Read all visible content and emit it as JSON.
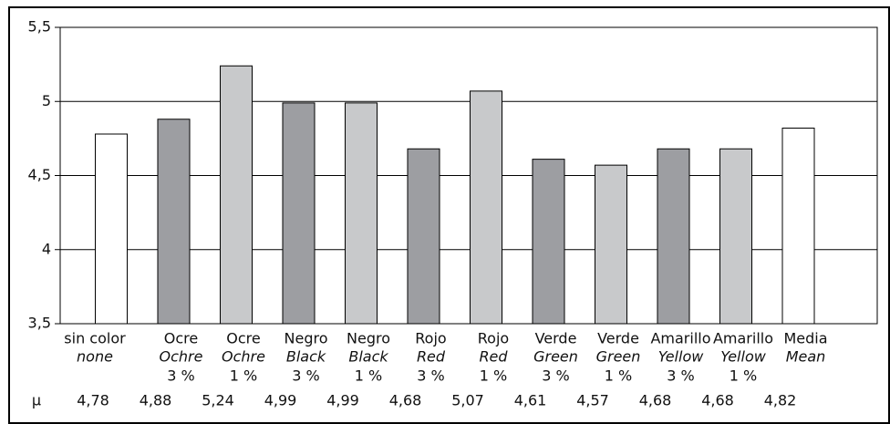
{
  "chart_data": {
    "type": "bar",
    "categories": [
      "sin color",
      "Ocre",
      "Ocre",
      "Negro",
      "Negro",
      "Rojo",
      "Rojo",
      "Verde",
      "Verde",
      "Amarillo",
      "Amarillo",
      "Media"
    ],
    "subcategories": [
      "none",
      "Ochre",
      "Ochre",
      "Black",
      "Black",
      "Red",
      "Red",
      "Green",
      "Green",
      "Yellow",
      "Yellow",
      "Mean"
    ],
    "percentages": [
      null,
      "3 %",
      "1 %",
      "3 %",
      "1 %",
      "3 %",
      "1 %",
      "3 %",
      "1 %",
      "3 %",
      "1 %",
      null
    ],
    "values": [
      4.78,
      4.88,
      5.24,
      4.99,
      4.99,
      4.68,
      5.07,
      4.61,
      4.57,
      4.68,
      4.68,
      4.82
    ],
    "value_labels": [
      "4,78",
      "4,88",
      "5,24",
      "4,99",
      "4,99",
      "4,68",
      "5,07",
      "4,61",
      "4,57",
      "4,68",
      "4,68",
      "4,82"
    ],
    "value_row_label": "μ",
    "colors": [
      "#ffffff",
      "#9d9ea2",
      "#c8c9cb",
      "#9d9ea2",
      "#c8c9cb",
      "#9d9ea2",
      "#c8c9cb",
      "#9d9ea2",
      "#c8c9cb",
      "#9d9ea2",
      "#c8c9cb",
      "#ffffff"
    ],
    "ylim": [
      3.5,
      5.5
    ],
    "yticks": [
      {
        "value": 3.5,
        "label": "3,5"
      },
      4,
      {
        "value": 4.5,
        "label": "4,5"
      },
      5,
      {
        "value": 5.5,
        "label": "5,5"
      }
    ],
    "grid": true
  }
}
